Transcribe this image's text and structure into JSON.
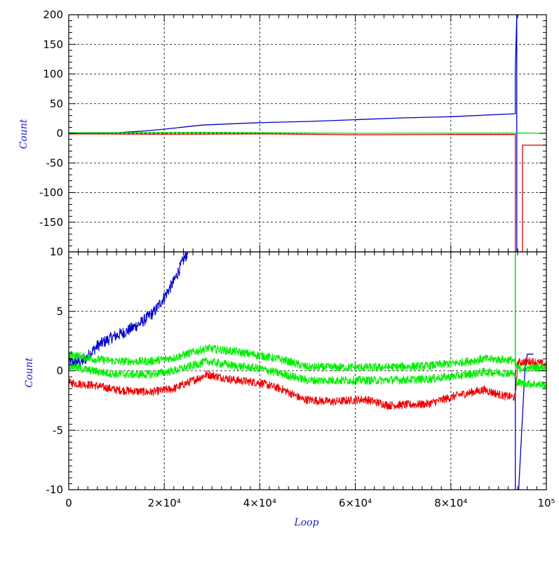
{
  "chart_data": [
    {
      "type": "line",
      "panel": "top",
      "xlabel": "",
      "ylabel": "Count",
      "xlim": [
        0,
        100000
      ],
      "ylim": [
        -200,
        200
      ],
      "y_tick_labels": [
        "200",
        "150",
        "100",
        "50",
        "0",
        "-50",
        "-100",
        "-150"
      ],
      "grid": true,
      "series": [
        {
          "color": "#0000cc",
          "x": [
            0,
            10000,
            16000,
            20000,
            28000,
            40000,
            50000,
            60000,
            70000,
            80000,
            93500,
            93500,
            93800,
            93800
          ],
          "y": [
            0,
            1,
            4,
            7,
            14,
            18,
            20,
            23,
            26,
            28,
            33,
            105,
            200,
            -200
          ]
        },
        {
          "color": "#dd0000",
          "x": [
            0,
            20000,
            40000,
            60000,
            80000,
            93500,
            93500,
            95000,
            95000,
            100000
          ],
          "y": [
            -1,
            -1.5,
            -1,
            -2.5,
            -2,
            -2,
            -200,
            -200,
            -20,
            -20
          ]
        },
        {
          "color": "#00dd00",
          "x": [
            0,
            30000,
            60000,
            93500,
            100000
          ],
          "y": [
            1,
            1.5,
            0,
            0.5,
            0
          ]
        }
      ]
    },
    {
      "type": "line",
      "panel": "bottom",
      "xlabel": "Loop",
      "ylabel": "Count",
      "xlim": [
        0,
        100000
      ],
      "ylim": [
        -10,
        10
      ],
      "x_tick_labels": [
        "0",
        "2×10⁴",
        "4×10⁴",
        "6×10⁴",
        "8×10⁴",
        "10⁵"
      ],
      "y_tick_labels": [
        "10",
        "5",
        "0",
        "-5",
        "-10"
      ],
      "grid": true,
      "series": [
        {
          "color": "#0000cc",
          "x": [
            0,
            3000,
            6000,
            9000,
            12000,
            15000,
            18000,
            20000,
            22000,
            24000,
            25000
          ],
          "y": [
            0.7,
            0.8,
            2.1,
            2.8,
            3.3,
            4.0,
            5.0,
            6.2,
            7.5,
            9.3,
            10
          ],
          "noise": 0.5
        },
        {
          "color": "#0000cc",
          "x": [
            93500,
            93500,
            93800,
            93800,
            94200,
            95300,
            95500,
            96000,
            97000,
            97300
          ],
          "y": [
            10,
            -10,
            -10,
            -10,
            -10,
            -1.5,
            0,
            1.4,
            1.4,
            1.4
          ],
          "noise": 0
        },
        {
          "color": "#ee0000",
          "x": [
            0,
            5000,
            10000,
            17000,
            22000,
            29000,
            35000,
            40000,
            45000,
            49000,
            55000,
            62000,
            67000,
            75000,
            82000,
            87000,
            91000,
            93000,
            93500,
            94000,
            97000,
            100000
          ],
          "y": [
            -1.0,
            -1.2,
            -1.6,
            -1.8,
            -1.5,
            -0.3,
            -0.8,
            -1.0,
            -1.6,
            -2.4,
            -2.6,
            -2.4,
            -2.9,
            -2.8,
            -2.0,
            -1.6,
            -2.1,
            -2.2,
            -2.2,
            0.7,
            0.8,
            0.5
          ],
          "noise": 0.35
        },
        {
          "color": "#00ee00",
          "x": [
            0,
            5000,
            10000,
            17000,
            22000,
            29000,
            35000,
            40000,
            45000,
            50000,
            55000,
            65000,
            75000,
            82000,
            87000,
            93000,
            94000,
            100000
          ],
          "y": [
            1.4,
            1.0,
            0.8,
            0.8,
            1.1,
            1.9,
            1.6,
            1.3,
            0.9,
            0.3,
            0.3,
            0.3,
            0.4,
            0.7,
            1.0,
            0.9,
            0.2,
            0.3
          ],
          "noise": 0.35
        },
        {
          "color": "#00ee00",
          "x": [
            0,
            5000,
            10000,
            17000,
            22000,
            29000,
            35000,
            40000,
            45000,
            50000,
            55000,
            65000,
            75000,
            82000,
            87000,
            93000,
            94000,
            100000
          ],
          "y": [
            0.4,
            0.0,
            -0.3,
            -0.3,
            0.0,
            0.8,
            0.4,
            0.2,
            -0.3,
            -0.8,
            -0.8,
            -0.8,
            -0.7,
            -0.4,
            -0.1,
            -0.2,
            -1.0,
            -1.2
          ],
          "noise": 0.35
        },
        {
          "color": "#00ee00",
          "x": [
            93500,
            93500
          ],
          "y": [
            10,
            0
          ],
          "noise": 0
        }
      ]
    }
  ]
}
